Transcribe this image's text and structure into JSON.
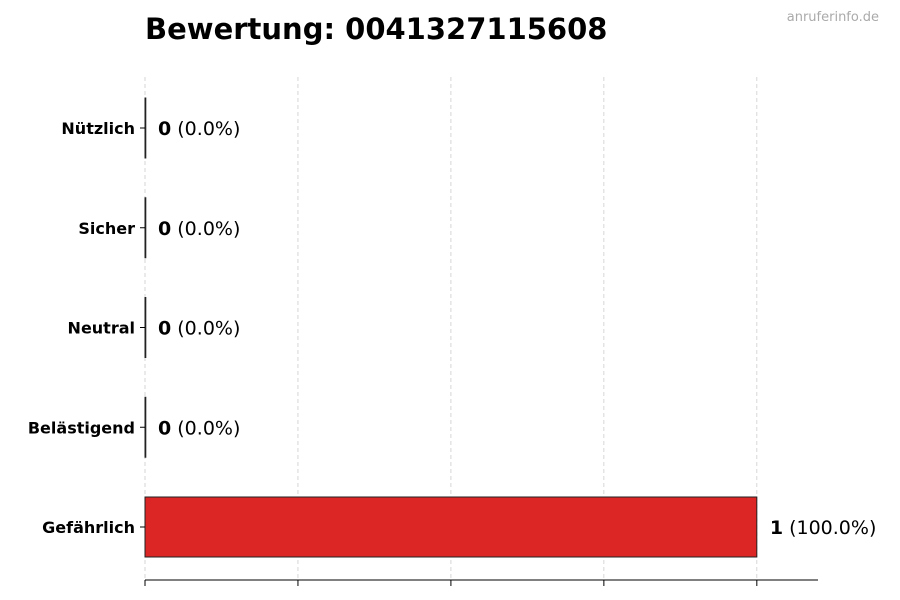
{
  "chart_data": {
    "type": "bar",
    "orientation": "horizontal",
    "title": "Bewertung: 0041327115608",
    "watermark": "anruferinfo.de",
    "categories": [
      "Nützlich",
      "Sicher",
      "Neutral",
      "Belästigend",
      "Gefährlich"
    ],
    "values": [
      0,
      0,
      0,
      0,
      1
    ],
    "labels": [
      "(0.0%)",
      "(0.0%)",
      "(0.0%)",
      "(0.0%)",
      "(100.0%)"
    ],
    "colors": [
      "#2ca02c",
      "#1f77b4",
      "#999999",
      "#ff7f0e",
      "#dc2626"
    ],
    "xlim": [
      0,
      1.1
    ],
    "xticks": [
      0,
      0.25,
      0.5,
      0.75,
      1
    ],
    "grid": "x dashed",
    "xlabel": "",
    "ylabel": ""
  }
}
